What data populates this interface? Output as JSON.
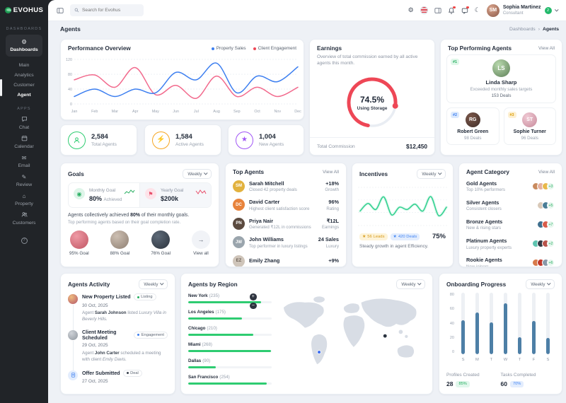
{
  "brand": {
    "name": "EVOHUS"
  },
  "topbar": {
    "search_placeholder": "Search for Evohus",
    "user_name": "Sophia Martinez",
    "user_role": "Consultant",
    "user_badge": "2"
  },
  "sidebar": {
    "section_dashboards": "DASHBOARDS",
    "dashboards_label": "Dashboards",
    "links": [
      {
        "label": "Main"
      },
      {
        "label": "Analytics"
      },
      {
        "label": "Customer"
      },
      {
        "label": "Agent"
      }
    ],
    "section_apps": "APPS",
    "apps": [
      {
        "label": "Chat"
      },
      {
        "label": "Calendar"
      },
      {
        "label": "Email"
      },
      {
        "label": "Review"
      },
      {
        "label": "Property"
      },
      {
        "label": "Customers"
      }
    ]
  },
  "page": {
    "title": "Agents",
    "breadcrumb_root": "Dashboards",
    "breadcrumb_current": "Agents"
  },
  "performance": {
    "title": "Performance Overview"
  },
  "stats": [
    {
      "value": "2,584",
      "label": "Total Agents",
      "color": "#2ecc71"
    },
    {
      "value": "1,584",
      "label": "Active Agents",
      "color": "#f5a623"
    },
    {
      "value": "1,004",
      "label": "New Agents",
      "color": "#a055f5"
    }
  ],
  "earnings": {
    "title": "Earnings",
    "description": "Overview of total commission earned by all active agents this month.",
    "gauge_value": "74.5%",
    "gauge_label": "Using Storage",
    "footer_label": "Total Commission",
    "footer_value": "$12,450"
  },
  "top_performing": {
    "title": "Top Performing Agents",
    "view_all": "View All",
    "featured": {
      "rank": "#1",
      "name": "Linda Sharp",
      "subtitle": "Exceeded monthly sales targets",
      "deals": "153 Deals"
    },
    "others": [
      {
        "rank": "#2",
        "name": "Robert Green",
        "deals": "98 Deals"
      },
      {
        "rank": "#3",
        "name": "Sophie Turner",
        "deals": "96 Deals"
      }
    ]
  },
  "goals": {
    "title": "Goals",
    "period": "Weekly",
    "monthly_label": "Monthly Goal",
    "monthly_value": "80%",
    "monthly_suffix": "Achieved",
    "yearly_label": "Yearly Goal",
    "yearly_value": "$200k",
    "summary_prefix": "Agents collectively achieved ",
    "summary_bold": "80%",
    "summary_suffix": " of their monthly goals.",
    "subtext": "Top performing agents based on their goal completion rate.",
    "achievers": [
      {
        "label": "95% Goal"
      },
      {
        "label": "88% Goal"
      },
      {
        "label": "76% Goal"
      }
    ],
    "view_all": "View all"
  },
  "top_agents": {
    "title": "Top Agents",
    "view_all": "View All",
    "rows": [
      {
        "name": "Sarah Mitchell",
        "desc": "Closed 42 property deals",
        "value": "+18%",
        "value_label": "Growth"
      },
      {
        "name": "David Carter",
        "desc": "Highest client satisfaction score",
        "value": "96%",
        "value_label": "Rating"
      },
      {
        "name": "Priya Nair",
        "desc": "Generated ₹12L in commissions",
        "value": "₹12L",
        "value_label": "Earnings"
      },
      {
        "name": "John Williams",
        "desc": "Top performer in luxury listings",
        "value": "24 Sales",
        "value_label": "Luxury"
      },
      {
        "name": "Emily Zhang",
        "desc": "",
        "value": "+9%",
        "value_label": ""
      }
    ]
  },
  "incentives": {
    "title": "Incentives",
    "period": "Weekly",
    "badge1": "56 Leads",
    "badge2": "420 Deals",
    "percent": "75%",
    "footer": "Steady growth in agent Efficiency."
  },
  "agent_category": {
    "title": "Agent Category",
    "view_all": "View All",
    "rows": [
      {
        "name": "Gold Agents",
        "desc": "Top 10% performers",
        "more": "+3"
      },
      {
        "name": "Silver Agents",
        "desc": "Consistent closers",
        "more": "+5"
      },
      {
        "name": "Bronze Agents",
        "desc": "New & rising stars",
        "more": "+7"
      },
      {
        "name": "Platinum Agents",
        "desc": "Luxury property experts",
        "more": "+2"
      },
      {
        "name": "Rookie Agents",
        "desc": "New joiners",
        "more": "+6"
      }
    ]
  },
  "activity": {
    "title": "Agents Activity",
    "period": "Weekly",
    "items": [
      {
        "title": "New Property Listed",
        "badge": "Listing",
        "badge_color": "#27ae60",
        "date": "30 Oct, 2025",
        "d1": "Agent ",
        "d2": "Sarah Johnson",
        "d3": " listed ",
        "d4": "Luxury Villa in Beverly Hills."
      },
      {
        "title": "Client Meeting Scheduled",
        "badge": "Engagement",
        "badge_color": "#3d7ff0",
        "date": "29 Oct, 2025",
        "d1": "Agent ",
        "d2": "John Carter",
        "d3": " scheduled a meeting with client ",
        "d4": "Emily Davis."
      },
      {
        "title": "Offer Submitted",
        "badge": "Deal",
        "badge_color": "#39424f",
        "date": "27 Oct, 2025",
        "d1": "",
        "d2": "",
        "d3": "",
        "d4": ""
      }
    ]
  },
  "regions": {
    "title": "Agents by Region",
    "period": "Weekly",
    "items": [
      {
        "name": "New York",
        "count": "(235)"
      },
      {
        "name": "Los Angeles",
        "count": "(175)"
      },
      {
        "name": "Chicago",
        "count": "(210)"
      },
      {
        "name": "Miami",
        "count": "(268)"
      },
      {
        "name": "Dallas",
        "count": "(90)"
      },
      {
        "name": "San Francisco",
        "count": "(254)"
      }
    ]
  },
  "onboarding": {
    "title": "Onboarding Progress",
    "period": "Weekly",
    "metric1_label": "Profiles Created",
    "metric1_value": "28",
    "metric1_badge": "85%",
    "metric2_label": "Tasks Completed",
    "metric2_value": "60",
    "metric2_badge": "70%"
  },
  "chart_data": [
    {
      "id": "performance",
      "type": "line",
      "title": "Performance Overview",
      "x": [
        "Jan",
        "Feb",
        "Mar",
        "Apr",
        "May",
        "Jun",
        "Jul",
        "Aug",
        "Sep",
        "Oct",
        "Nov",
        "Dec"
      ],
      "series": [
        {
          "name": "Property Sales",
          "color": "#3d7ff0",
          "values": [
            20,
            40,
            20,
            40,
            30,
            85,
            65,
            110,
            30,
            75,
            60,
            100
          ]
        },
        {
          "name": "Client Engagement",
          "color": "#f26a8d",
          "values": [
            65,
            78,
            45,
            98,
            25,
            50,
            15,
            75,
            20,
            45,
            20,
            45
          ]
        }
      ],
      "ylim": [
        0,
        120
      ],
      "yticks": [
        0,
        40,
        80,
        120
      ],
      "grid": true,
      "legend_position": "top-right"
    },
    {
      "id": "earnings_gauge",
      "type": "donut",
      "value": 74.5,
      "label": "Using Storage",
      "color": "#ee4756"
    },
    {
      "id": "incentives",
      "type": "line",
      "values": [
        38,
        58,
        42,
        75,
        28,
        48,
        42,
        56,
        38,
        76,
        26,
        48
      ],
      "ylim": [
        0,
        100
      ],
      "color": "#2ed08e",
      "grid": true
    },
    {
      "id": "onboarding",
      "type": "bar",
      "categories": [
        "S",
        "M",
        "T",
        "W",
        "T",
        "F",
        "S"
      ],
      "values": [
        44,
        54,
        41,
        66,
        22,
        43,
        21
      ],
      "ylim": [
        0,
        80
      ],
      "yticks": [
        0,
        20,
        40,
        60,
        80
      ],
      "color": "#4d7fa6"
    },
    {
      "id": "regions",
      "type": "bar",
      "categories": [
        "New York",
        "Los Angeles",
        "Chicago",
        "Miami",
        "Dallas",
        "San Francisco"
      ],
      "values": [
        235,
        175,
        210,
        268,
        90,
        254
      ],
      "color": "#2ecc71"
    }
  ]
}
